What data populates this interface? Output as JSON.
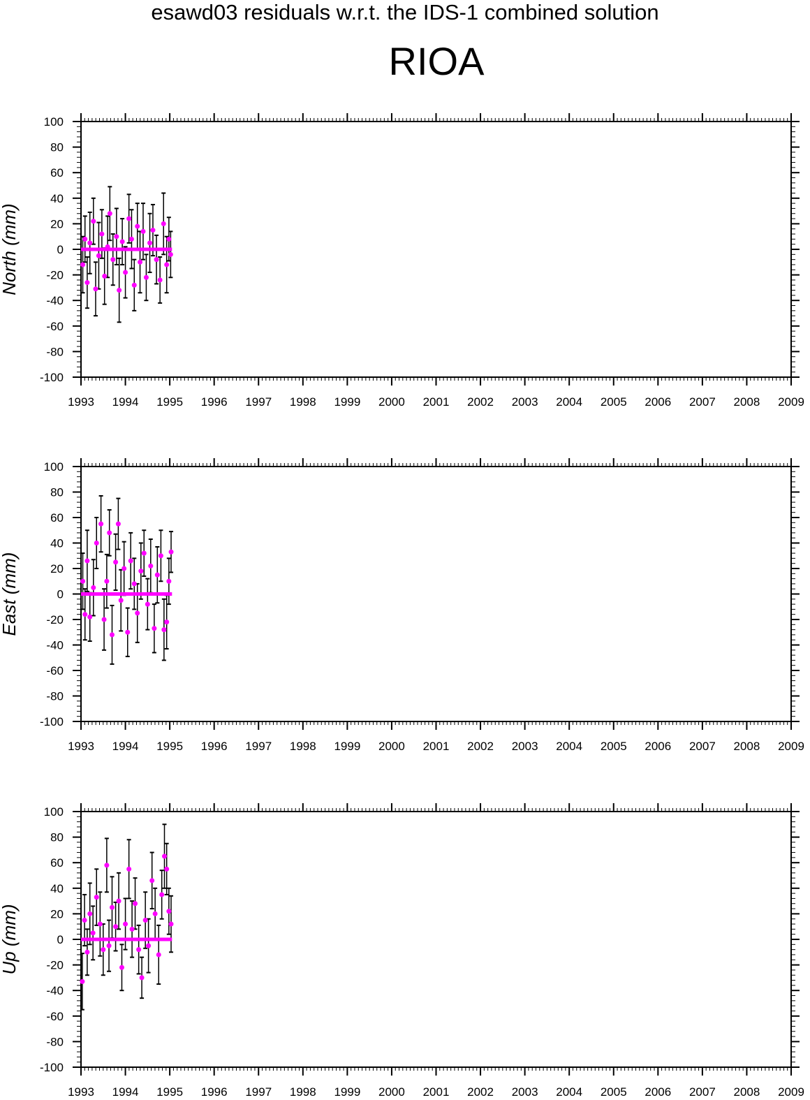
{
  "title": "esawd03 residuals w.r.t. the IDS-1 combined solution",
  "station": "RIOA",
  "colors": {
    "points": "#ff00ff",
    "errorbars": "#000000",
    "axes": "#000000"
  },
  "chart_data": [
    {
      "type": "scatter",
      "ylabel": "North (mm)",
      "xlim": [
        1993,
        2009
      ],
      "ylim": [
        -100,
        100
      ],
      "x_ticks": [
        "1993",
        "1994",
        "1995",
        "1996",
        "1997",
        "1998",
        "1999",
        "2000",
        "2001",
        "2002",
        "2003",
        "2004",
        "2005",
        "2006",
        "2007",
        "2008",
        "2009"
      ],
      "y_ticks": [
        "100",
        "80",
        "60",
        "40",
        "20",
        "0",
        "-20",
        "-40",
        "-60",
        "-80",
        "-100"
      ],
      "grid": false,
      "series": [
        {
          "style": "points with error bars",
          "x": [
            1993.04,
            1993.09,
            1993.14,
            1993.2,
            1993.28,
            1993.33,
            1993.4,
            1993.47,
            1993.53,
            1993.6,
            1993.65,
            1993.72,
            1993.8,
            1993.86,
            1993.93,
            1994.0,
            1994.08,
            1994.14,
            1994.2,
            1994.27,
            1994.33,
            1994.4,
            1994.47,
            1994.55,
            1994.62,
            1994.7,
            1994.78,
            1994.86,
            1994.93,
            1994.98,
            1995.02
          ],
          "y": [
            -12,
            8,
            -26,
            5,
            22,
            -31,
            -5,
            12,
            -21,
            2,
            28,
            -8,
            10,
            -32,
            6,
            -18,
            24,
            8,
            -28,
            18,
            -10,
            14,
            -22,
            5,
            15,
            -8,
            -24,
            20,
            -12,
            8,
            -4
          ],
          "err": [
            22,
            18,
            20,
            24,
            18,
            21,
            26,
            19,
            22,
            24,
            21,
            20,
            22,
            25,
            18,
            20,
            19,
            23,
            20,
            18,
            24,
            22,
            18,
            23,
            20,
            19,
            18,
            24,
            22,
            17,
            18
          ]
        },
        {
          "style": "mean line",
          "x": [
            1993.0,
            1995.05
          ],
          "y": [
            0,
            0
          ]
        }
      ]
    },
    {
      "type": "scatter",
      "ylabel": "East (mm)",
      "xlim": [
        1993,
        2009
      ],
      "ylim": [
        -100,
        100
      ],
      "x_ticks": [
        "1993",
        "1994",
        "1995",
        "1996",
        "1997",
        "1998",
        "1999",
        "2000",
        "2001",
        "2002",
        "2003",
        "2004",
        "2005",
        "2006",
        "2007",
        "2008",
        "2009"
      ],
      "y_ticks": [
        "100",
        "80",
        "60",
        "40",
        "20",
        "0",
        "-20",
        "-40",
        "-60",
        "-80",
        "-100"
      ],
      "grid": false,
      "series": [
        {
          "style": "points with error bars",
          "x": [
            1993.04,
            1993.09,
            1993.14,
            1993.2,
            1993.28,
            1993.35,
            1993.45,
            1993.52,
            1993.58,
            1993.64,
            1993.7,
            1993.78,
            1993.84,
            1993.9,
            1993.97,
            1994.05,
            1994.12,
            1994.2,
            1994.27,
            1994.35,
            1994.42,
            1994.5,
            1994.57,
            1994.65,
            1994.72,
            1994.8,
            1994.87,
            1994.93,
            1994.98,
            1995.03
          ],
          "y": [
            10,
            -16,
            26,
            -18,
            5,
            40,
            55,
            -20,
            10,
            48,
            -32,
            25,
            55,
            -5,
            20,
            -30,
            26,
            8,
            -15,
            18,
            32,
            -8,
            22,
            -27,
            15,
            30,
            -28,
            -22,
            10,
            33
          ],
          "err": [
            22,
            20,
            24,
            19,
            22,
            20,
            22,
            24,
            21,
            18,
            23,
            22,
            20,
            24,
            21,
            19,
            22,
            20,
            23,
            22,
            18,
            20,
            21,
            19,
            22,
            20,
            24,
            21,
            18,
            16
          ]
        },
        {
          "style": "mean line",
          "x": [
            1993.0,
            1995.05
          ],
          "y": [
            0,
            0
          ]
        }
      ]
    },
    {
      "type": "scatter",
      "ylabel": "Up (mm)",
      "xlim": [
        1993,
        2009
      ],
      "ylim": [
        -100,
        100
      ],
      "x_ticks": [
        "1993",
        "1994",
        "1995",
        "1996",
        "1997",
        "1998",
        "1999",
        "2000",
        "2001",
        "2002",
        "2003",
        "2004",
        "2005",
        "2006",
        "2007",
        "2008",
        "2009"
      ],
      "y_ticks": [
        "100",
        "80",
        "60",
        "40",
        "20",
        "0",
        "-20",
        "-40",
        "-60",
        "-80",
        "-100"
      ],
      "grid": false,
      "series": [
        {
          "style": "points with error bars",
          "x": [
            1993.03,
            1993.08,
            1993.14,
            1993.2,
            1993.27,
            1993.35,
            1993.43,
            1993.5,
            1993.58,
            1993.63,
            1993.7,
            1993.78,
            1993.85,
            1993.92,
            1994.0,
            1994.08,
            1994.15,
            1994.22,
            1994.3,
            1994.37,
            1994.45,
            1994.52,
            1994.6,
            1994.67,
            1994.75,
            1994.82,
            1994.88,
            1994.93,
            1994.98,
            1995.03
          ],
          "y": [
            -33,
            15,
            -10,
            20,
            5,
            33,
            12,
            -8,
            58,
            -5,
            25,
            10,
            30,
            -22,
            12,
            55,
            8,
            28,
            -8,
            -30,
            15,
            -5,
            46,
            20,
            -12,
            35,
            65,
            55,
            22,
            12
          ],
          "err": [
            22,
            20,
            18,
            24,
            21,
            22,
            25,
            20,
            21,
            20,
            24,
            19,
            22,
            18,
            20,
            23,
            22,
            20,
            19,
            16,
            22,
            21,
            22,
            20,
            23,
            19,
            25,
            20,
            18,
            22
          ]
        },
        {
          "style": "mean line",
          "x": [
            1993.0,
            1995.05
          ],
          "y": [
            0,
            0
          ]
        }
      ]
    }
  ]
}
